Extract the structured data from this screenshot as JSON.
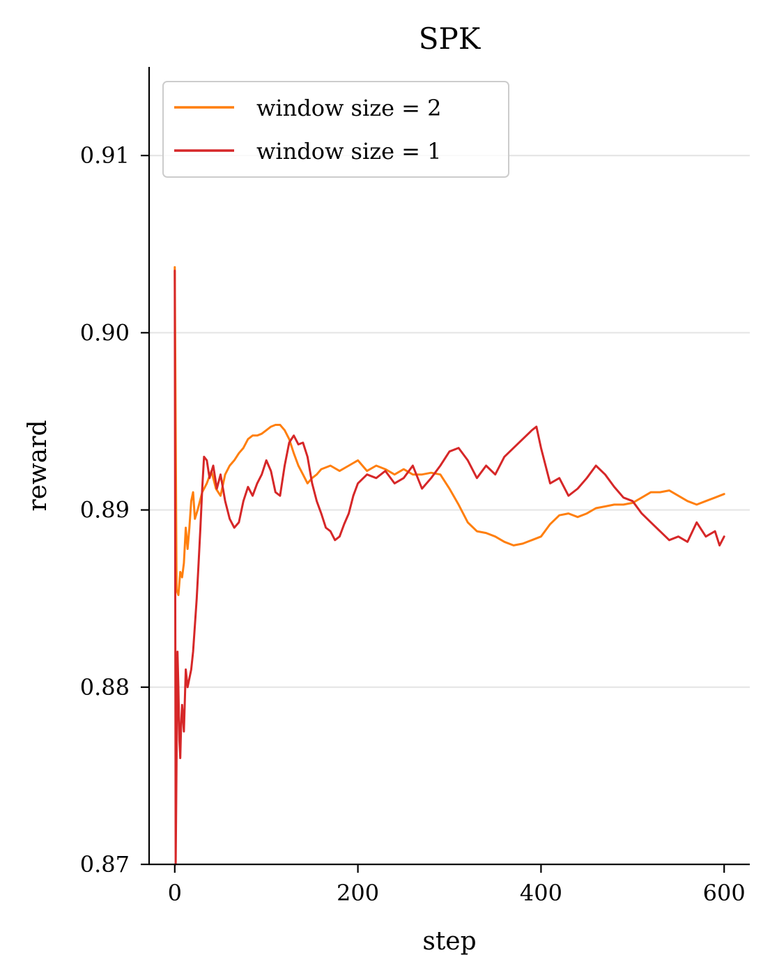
{
  "chart_data": {
    "type": "line",
    "title": "SPK",
    "xlabel": "step",
    "ylabel": "reward",
    "xlim": [
      -28,
      628
    ],
    "ylim": [
      0.87,
      0.915
    ],
    "xticks": [
      0,
      200,
      400,
      600
    ],
    "xtick_labels": [
      "0",
      "200",
      "400",
      "600"
    ],
    "yticks": [
      0.87,
      0.88,
      0.89,
      0.9,
      0.91
    ],
    "ytick_labels": [
      "0.87",
      "0.88",
      "0.89",
      "0.90",
      "0.91"
    ],
    "grid": "horizontal",
    "legend_position": "upper-left",
    "series": [
      {
        "name": "window size = 2",
        "color": "#ff7f0e",
        "x": [
          0,
          2,
          4,
          6,
          8,
          10,
          12,
          14,
          16,
          18,
          20,
          22,
          25,
          30,
          35,
          40,
          45,
          50,
          55,
          60,
          65,
          70,
          75,
          80,
          85,
          90,
          95,
          100,
          105,
          110,
          115,
          120,
          125,
          130,
          135,
          140,
          145,
          150,
          155,
          160,
          170,
          180,
          190,
          200,
          210,
          220,
          230,
          240,
          250,
          260,
          270,
          280,
          290,
          300,
          310,
          320,
          330,
          340,
          350,
          360,
          370,
          380,
          390,
          400,
          410,
          420,
          430,
          440,
          450,
          460,
          470,
          480,
          490,
          500,
          510,
          520,
          530,
          540,
          550,
          560,
          570,
          580,
          590,
          600
        ],
        "y": [
          0.9037,
          0.8855,
          0.8852,
          0.8865,
          0.8862,
          0.887,
          0.889,
          0.8878,
          0.889,
          0.8905,
          0.891,
          0.8895,
          0.89,
          0.891,
          0.8915,
          0.8922,
          0.8912,
          0.8908,
          0.892,
          0.8925,
          0.8928,
          0.8932,
          0.8935,
          0.894,
          0.8942,
          0.8942,
          0.8943,
          0.8945,
          0.8947,
          0.8948,
          0.8948,
          0.8945,
          0.894,
          0.8932,
          0.8925,
          0.892,
          0.8915,
          0.8918,
          0.892,
          0.8923,
          0.8925,
          0.8922,
          0.8925,
          0.8928,
          0.8922,
          0.8925,
          0.8923,
          0.892,
          0.8923,
          0.892,
          0.892,
          0.8921,
          0.892,
          0.8912,
          0.8903,
          0.8893,
          0.8888,
          0.8887,
          0.8885,
          0.8882,
          0.888,
          0.8881,
          0.8883,
          0.8885,
          0.8892,
          0.8897,
          0.8898,
          0.8896,
          0.8898,
          0.8901,
          0.8902,
          0.8903,
          0.8903,
          0.8904,
          0.8907,
          0.891,
          0.891,
          0.8911,
          0.8908,
          0.8905,
          0.8903,
          0.8905,
          0.8907,
          0.8909
        ]
      },
      {
        "name": "window size = 1",
        "color": "#d62728",
        "x": [
          0,
          1,
          2,
          3,
          4,
          5,
          6,
          7,
          8,
          10,
          12,
          14,
          16,
          18,
          20,
          22,
          24,
          26,
          28,
          30,
          32,
          35,
          38,
          42,
          46,
          50,
          55,
          60,
          65,
          70,
          75,
          80,
          85,
          90,
          95,
          100,
          105,
          110,
          115,
          120,
          125,
          130,
          135,
          140,
          145,
          150,
          155,
          160,
          165,
          170,
          175,
          180,
          185,
          190,
          195,
          200,
          210,
          220,
          230,
          240,
          250,
          260,
          270,
          280,
          290,
          300,
          310,
          320,
          330,
          340,
          350,
          360,
          370,
          380,
          390,
          395,
          400,
          410,
          420,
          430,
          440,
          450,
          460,
          470,
          480,
          490,
          500,
          510,
          520,
          530,
          540,
          550,
          560,
          570,
          580,
          590,
          595,
          600
        ],
        "y": [
          0.9035,
          0.87,
          0.876,
          0.882,
          0.88,
          0.877,
          0.876,
          0.878,
          0.879,
          0.8775,
          0.881,
          0.88,
          0.8805,
          0.881,
          0.882,
          0.8835,
          0.885,
          0.887,
          0.889,
          0.8912,
          0.893,
          0.8928,
          0.8918,
          0.8925,
          0.8912,
          0.892,
          0.8905,
          0.8895,
          0.889,
          0.8893,
          0.8905,
          0.8913,
          0.8908,
          0.8915,
          0.892,
          0.8928,
          0.8922,
          0.891,
          0.8908,
          0.8925,
          0.8938,
          0.8942,
          0.8937,
          0.8938,
          0.893,
          0.8915,
          0.8905,
          0.8898,
          0.889,
          0.8888,
          0.8883,
          0.8885,
          0.8892,
          0.8898,
          0.8908,
          0.8915,
          0.892,
          0.8918,
          0.8922,
          0.8915,
          0.8918,
          0.8925,
          0.8912,
          0.8918,
          0.8925,
          0.8933,
          0.8935,
          0.8928,
          0.8918,
          0.8925,
          0.892,
          0.893,
          0.8935,
          0.894,
          0.8945,
          0.8947,
          0.8935,
          0.8915,
          0.8918,
          0.8908,
          0.8912,
          0.8918,
          0.8925,
          0.892,
          0.8913,
          0.8907,
          0.8905,
          0.8898,
          0.8893,
          0.8888,
          0.8883,
          0.8885,
          0.8882,
          0.8893,
          0.8885,
          0.8888,
          0.888,
          0.8885
        ]
      }
    ]
  }
}
